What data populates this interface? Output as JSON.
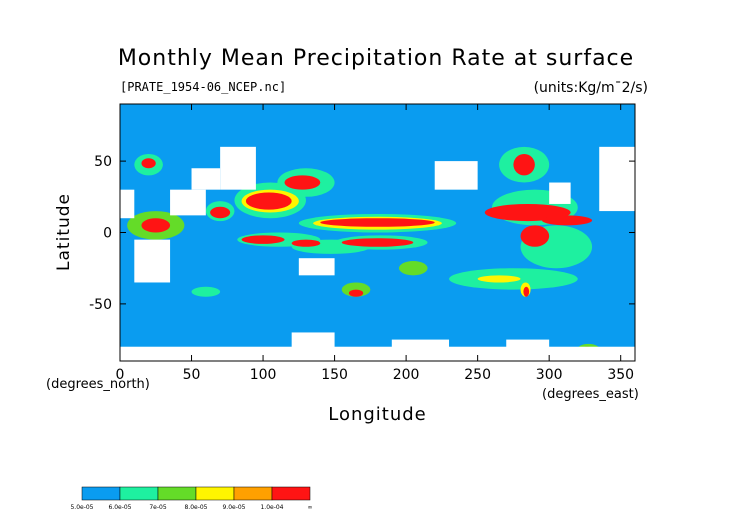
{
  "chart_data": {
    "type": "heatmap",
    "title": "Monthly Mean Precipitation Rate at surface",
    "subtitle": "[PRATE_1954-06_NCEP.nc]",
    "units_label": "(units:Kg/m¯2/s)",
    "xlabel": "Longitude",
    "ylabel": "Latitude",
    "x_unit_label": "(degrees_east)",
    "y_unit_label": "(degrees_north)",
    "xlim": [
      0,
      360
    ],
    "ylim": [
      -90,
      90
    ],
    "x_ticks": [
      0,
      50,
      100,
      150,
      200,
      250,
      300,
      350
    ],
    "y_ticks": [
      -50,
      0,
      50
    ],
    "background_color": "#0a9cf0",
    "masked_color": "#ffffff",
    "colorbar": {
      "labels": [
        "5.0e-05",
        "6.0e-05",
        "7e-05",
        "8.0e-05",
        "9.0e-05",
        "1.0e-04",
        "∞"
      ],
      "colors": [
        "#0a9cf0",
        "#1ef0a0",
        "#64dc28",
        "#fff500",
        "#ffa000",
        "#ff1414"
      ]
    },
    "regions": [
      {
        "level": 0,
        "lon": [
          130,
          215
        ],
        "lat": [
          5,
          12
        ]
      },
      {
        "level": 1,
        "lon": [
          125,
          235
        ],
        "lat": [
          0,
          13
        ]
      },
      {
        "level": 3,
        "lon": [
          135,
          225
        ],
        "lat": [
          2,
          11
        ]
      },
      {
        "level": 5,
        "lon": [
          140,
          220
        ],
        "lat": [
          4,
          10
        ]
      },
      {
        "level": 1,
        "lon": [
          150,
          215
        ],
        "lat": [
          -12,
          -2
        ]
      },
      {
        "level": 5,
        "lon": [
          155,
          205
        ],
        "lat": [
          -10,
          -4
        ]
      },
      {
        "level": 1,
        "lon": [
          80,
          130
        ],
        "lat": [
          10,
          35
        ]
      },
      {
        "level": 3,
        "lon": [
          85,
          125
        ],
        "lat": [
          14,
          30
        ]
      },
      {
        "level": 5,
        "lon": [
          88,
          120
        ],
        "lat": [
          16,
          28
        ]
      },
      {
        "level": 1,
        "lon": [
          110,
          150
        ],
        "lat": [
          25,
          45
        ]
      },
      {
        "level": 5,
        "lon": [
          115,
          140
        ],
        "lat": [
          30,
          40
        ]
      },
      {
        "level": 1,
        "lon": [
          60,
          80
        ],
        "lat": [
          8,
          22
        ]
      },
      {
        "level": 5,
        "lon": [
          63,
          77
        ],
        "lat": [
          10,
          18
        ]
      },
      {
        "level": 1,
        "lon": [
          82,
          140
        ],
        "lat": [
          -10,
          0
        ]
      },
      {
        "level": 5,
        "lon": [
          85,
          115
        ],
        "lat": [
          -8,
          -2
        ]
      },
      {
        "level": 1,
        "lon": [
          120,
          175
        ],
        "lat": [
          -15,
          -5
        ]
      },
      {
        "level": 5,
        "lon": [
          120,
          140
        ],
        "lat": [
          -10,
          -5
        ]
      },
      {
        "level": 5,
        "lon": [
          15,
          35
        ],
        "lat": [
          0,
          10
        ]
      },
      {
        "level": 2,
        "lon": [
          5,
          45
        ],
        "lat": [
          -5,
          15
        ]
      },
      {
        "level": 1,
        "lon": [
          260,
          320
        ],
        "lat": [
          5,
          30
        ]
      },
      {
        "level": 5,
        "lon": [
          255,
          315
        ],
        "lat": [
          8,
          20
        ]
      },
      {
        "level": 5,
        "lon": [
          280,
          300
        ],
        "lat": [
          -10,
          5
        ]
      },
      {
        "level": 1,
        "lon": [
          280,
          330
        ],
        "lat": [
          -25,
          5
        ]
      },
      {
        "level": 5,
        "lon": [
          295,
          330
        ],
        "lat": [
          5,
          12
        ]
      },
      {
        "level": 1,
        "lon": [
          265,
          300
        ],
        "lat": [
          35,
          60
        ]
      },
      {
        "level": 5,
        "lon": [
          275,
          290
        ],
        "lat": [
          40,
          55
        ]
      },
      {
        "level": 3,
        "lon": [
          280,
          287
        ],
        "lat": [
          -45,
          -35
        ]
      },
      {
        "level": 5,
        "lon": [
          282,
          286
        ],
        "lat": [
          -45,
          -38
        ]
      },
      {
        "level": 1,
        "lon": [
          230,
          320
        ],
        "lat": [
          -40,
          -25
        ]
      },
      {
        "level": 3,
        "lon": [
          250,
          280
        ],
        "lat": [
          -35,
          -30
        ]
      },
      {
        "level": 2,
        "lon": [
          155,
          175
        ],
        "lat": [
          -45,
          -35
        ]
      },
      {
        "level": 5,
        "lon": [
          160,
          170
        ],
        "lat": [
          -45,
          -40
        ]
      },
      {
        "level": 1,
        "lon": [
          10,
          30
        ],
        "lat": [
          40,
          55
        ]
      },
      {
        "level": 5,
        "lon": [
          15,
          25
        ],
        "lat": [
          45,
          52
        ]
      },
      {
        "level": 2,
        "lon": [
          320,
          335
        ],
        "lat": [
          -85,
          -78
        ]
      },
      {
        "level": 5,
        "lon": [
          323,
          330
        ],
        "lat": [
          -83,
          -80
        ]
      },
      {
        "level": 1,
        "lon": [
          50,
          70
        ],
        "lat": [
          -45,
          -38
        ]
      },
      {
        "level": 2,
        "lon": [
          195,
          215
        ],
        "lat": [
          -30,
          -20
        ]
      }
    ],
    "masked_regions": [
      {
        "lon": [
          0,
          10
        ],
        "lat": [
          10,
          30
        ]
      },
      {
        "lon": [
          10,
          35
        ],
        "lat": [
          -35,
          -5
        ]
      },
      {
        "lon": [
          35,
          60
        ],
        "lat": [
          12,
          30
        ]
      },
      {
        "lon": [
          50,
          70
        ],
        "lat": [
          30,
          45
        ]
      },
      {
        "lon": [
          70,
          95
        ],
        "lat": [
          30,
          60
        ]
      },
      {
        "lon": [
          125,
          150
        ],
        "lat": [
          -30,
          -18
        ]
      },
      {
        "lon": [
          220,
          250
        ],
        "lat": [
          30,
          50
        ]
      },
      {
        "lon": [
          300,
          315
        ],
        "lat": [
          20,
          35
        ]
      },
      {
        "lon": [
          335,
          360
        ],
        "lat": [
          15,
          60
        ]
      },
      {
        "lon": [
          0,
          360
        ],
        "lat": [
          -90,
          -80
        ]
      },
      {
        "lon": [
          120,
          150
        ],
        "lat": [
          -85,
          -70
        ]
      },
      {
        "lon": [
          190,
          230
        ],
        "lat": [
          -88,
          -75
        ]
      },
      {
        "lon": [
          270,
          300
        ],
        "lat": [
          -88,
          -75
        ]
      }
    ]
  }
}
